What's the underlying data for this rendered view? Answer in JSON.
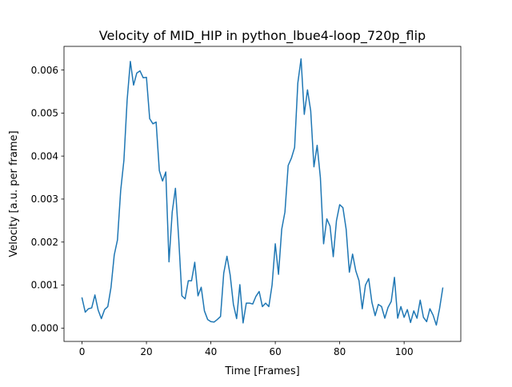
{
  "chart_data": {
    "type": "line",
    "title": "Velocity of MID_HIP in python_lbue4-loop_720p_flip",
    "xlabel": "Time [Frames]",
    "ylabel": "Velocity [a.u. per frame]",
    "xlim": [
      -5.6,
      117.6
    ],
    "ylim": [
      -0.00031,
      0.00655
    ],
    "xticks": [
      0,
      20,
      40,
      60,
      80,
      100
    ],
    "yticks": [
      0.0,
      0.001,
      0.002,
      0.003,
      0.004,
      0.005,
      0.006
    ],
    "xtick_labels": [
      "0",
      "20",
      "40",
      "60",
      "80",
      "100"
    ],
    "ytick_labels": [
      "0.000",
      "0.001",
      "0.002",
      "0.003",
      "0.004",
      "0.005",
      "0.006"
    ],
    "grid": false,
    "line_color": "#1f77b4",
    "series": [
      {
        "x": [
          0,
          1,
          2,
          3,
          4,
          5,
          6,
          7,
          8,
          9,
          10,
          11,
          12,
          13,
          14,
          15,
          16,
          17,
          18,
          19,
          20,
          21,
          22,
          23,
          24,
          25,
          26,
          27,
          28,
          29,
          30,
          31,
          32,
          33,
          34,
          35,
          36,
          37,
          38,
          39,
          40,
          41,
          42,
          43,
          44,
          45,
          46,
          47,
          48,
          49,
          50,
          51,
          52,
          53,
          54,
          55,
          56,
          57,
          58,
          59,
          60,
          61,
          62,
          63,
          64,
          65,
          66,
          67,
          68,
          69,
          70,
          71,
          72,
          73,
          74,
          75,
          76,
          77,
          78,
          79,
          80,
          81,
          82,
          83,
          84,
          85,
          86,
          87,
          88,
          89,
          90,
          91,
          92,
          93,
          94,
          95,
          96,
          97,
          98,
          99,
          100,
          101,
          102,
          103,
          104,
          105,
          106,
          107,
          108,
          109,
          110,
          111,
          112
        ],
        "y": [
          0.0007,
          0.00037,
          0.00045,
          0.00047,
          0.00077,
          0.00042,
          0.00022,
          0.00043,
          0.0005,
          0.00095,
          0.0017,
          0.00205,
          0.0032,
          0.0039,
          0.0053,
          0.0062,
          0.00565,
          0.00593,
          0.00598,
          0.00582,
          0.00583,
          0.00487,
          0.00475,
          0.00479,
          0.00366,
          0.00342,
          0.00363,
          0.00154,
          0.0027,
          0.00325,
          0.0021,
          0.00075,
          0.00068,
          0.0011,
          0.0011,
          0.00153,
          0.00075,
          0.00095,
          0.0004,
          0.0002,
          0.00015,
          0.00014,
          0.0002,
          0.00027,
          0.00128,
          0.00167,
          0.00123,
          0.00055,
          0.00022,
          0.00101,
          0.00012,
          0.00058,
          0.00058,
          0.00056,
          0.00074,
          0.00085,
          0.0005,
          0.00058,
          0.0005,
          0.001,
          0.00196,
          0.00125,
          0.0023,
          0.0027,
          0.00378,
          0.00395,
          0.0042,
          0.0057,
          0.00626,
          0.00497,
          0.00554,
          0.00505,
          0.00375,
          0.00425,
          0.0035,
          0.00196,
          0.00254,
          0.00237,
          0.00166,
          0.0025,
          0.00287,
          0.0028,
          0.0023,
          0.0013,
          0.00172,
          0.00133,
          0.0011,
          0.00045,
          0.001,
          0.00115,
          0.0006,
          0.00029,
          0.00055,
          0.0005,
          0.00023,
          0.00048,
          0.00062,
          0.00118,
          0.00023,
          0.0005,
          0.00025,
          0.00043,
          0.00013,
          0.0004,
          0.00023,
          0.00065,
          0.00025,
          0.00015,
          0.00045,
          0.0003,
          7e-05,
          0.00045,
          0.00093
        ]
      }
    ]
  }
}
